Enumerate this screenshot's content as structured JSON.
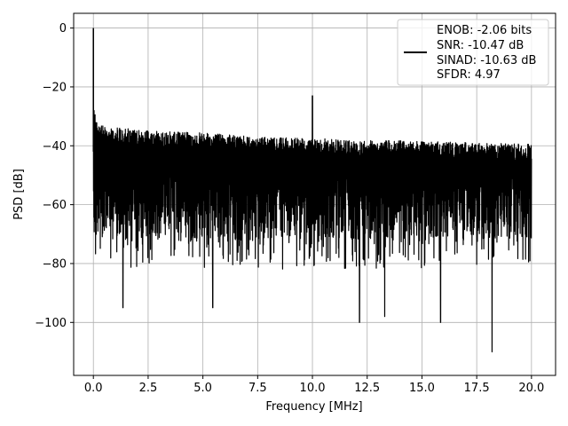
{
  "chart_data": {
    "type": "line",
    "title": "",
    "xlabel": "Frequency [MHz]",
    "ylabel": "PSD [dB]",
    "xlim": [
      -0.9,
      21.1
    ],
    "ylim": [
      -118,
      5
    ],
    "xticks": [
      0.0,
      2.5,
      5.0,
      7.5,
      10.0,
      12.5,
      15.0,
      17.5,
      20.0
    ],
    "xtick_labels": [
      "0.0",
      "2.5",
      "5.0",
      "7.5",
      "10.0",
      "12.5",
      "15.0",
      "17.5",
      "20.0"
    ],
    "yticks": [
      0,
      -20,
      -40,
      -60,
      -80,
      -100
    ],
    "ytick_labels": [
      "0",
      "−20",
      "−40",
      "−60",
      "−80",
      "−100"
    ],
    "grid": true,
    "legend_position": "top-right",
    "legend_lines": [
      "ENOB: -2.06 bits",
      "SNR: -10.47 dB",
      "SINAD: -10.63 dB",
      "SFDR: 4.97"
    ],
    "series": [
      {
        "color": "#000000",
        "x_range_mhz": [
          0.0,
          20.0
        ],
        "peaks": [
          {
            "x": 0.0,
            "y": 0.0
          },
          {
            "x": 10.0,
            "y": -23.0
          }
        ],
        "noise_upper_envelope": [
          {
            "x": 0.05,
            "y": -27
          },
          {
            "x": 0.2,
            "y": -33
          },
          {
            "x": 2.5,
            "y": -35
          },
          {
            "x": 5.0,
            "y": -35.5
          },
          {
            "x": 7.5,
            "y": -37
          },
          {
            "x": 10.0,
            "y": -37.5
          },
          {
            "x": 12.5,
            "y": -38
          },
          {
            "x": 15.0,
            "y": -38.5
          },
          {
            "x": 17.5,
            "y": -39
          },
          {
            "x": 20.0,
            "y": -39.5
          }
        ],
        "noise_band_typical": [
          -78,
          -40
        ],
        "deep_nulls": [
          {
            "x": 1.35,
            "y": -95
          },
          {
            "x": 5.45,
            "y": -95
          },
          {
            "x": 12.15,
            "y": -100
          },
          {
            "x": 13.3,
            "y": -98
          },
          {
            "x": 15.85,
            "y": -100
          },
          {
            "x": 18.2,
            "y": -110
          }
        ]
      }
    ]
  }
}
